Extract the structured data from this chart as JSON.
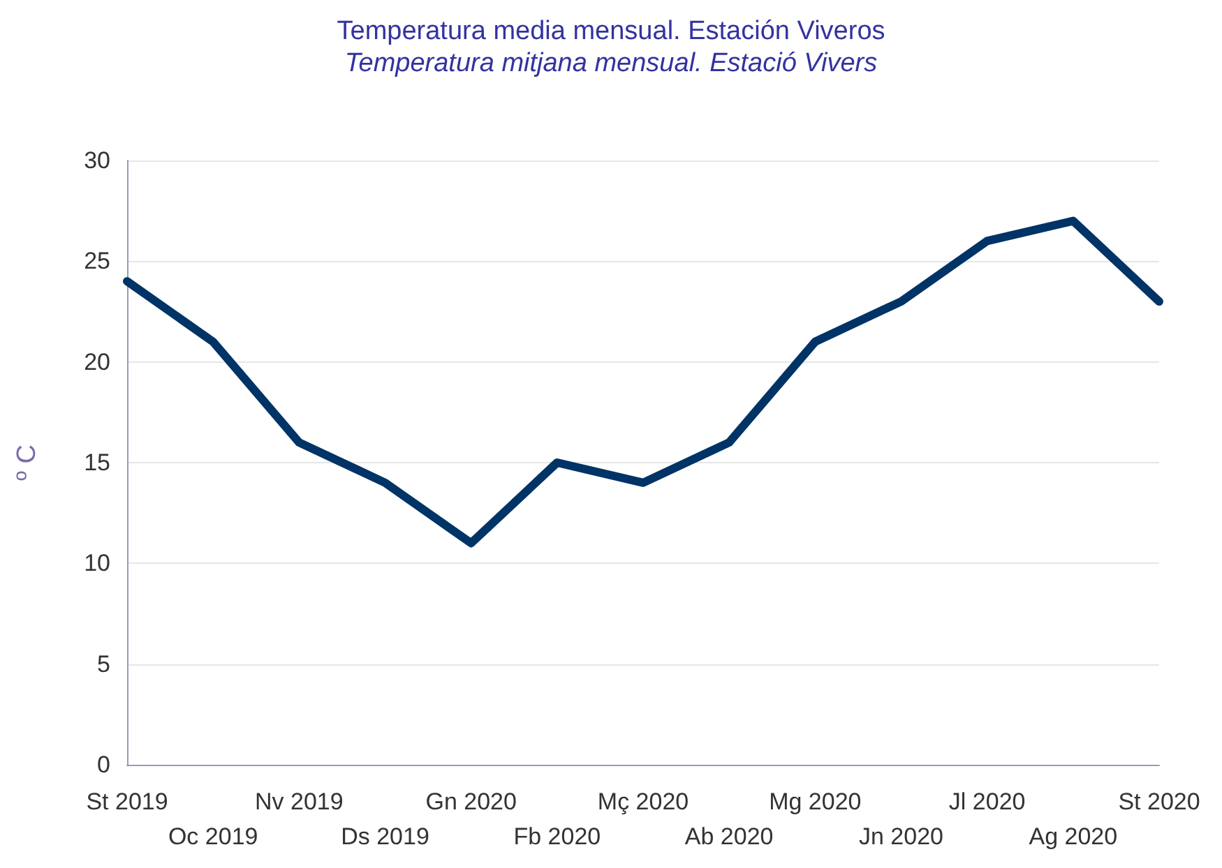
{
  "chart_data": {
    "type": "line",
    "title": "Temperatura media mensual. Estación Viveros",
    "subtitle": "Temperatura mitjana mensual. Estació Vivers",
    "ylabel": "º C",
    "categories": [
      "St 2019",
      "Oc 2019",
      "Nv 2019",
      "Ds 2019",
      "Gn 2020",
      "Fb 2020",
      "Mç 2020",
      "Ab 2020",
      "Mg 2020",
      "Jn 2020",
      "Jl 2020",
      "Ag 2020",
      "St 2020"
    ],
    "series": [
      {
        "color": "#003366",
        "values": [
          24,
          21,
          16,
          14,
          11,
          15,
          14,
          16,
          21,
          23,
          26,
          27,
          23
        ]
      }
    ],
    "ylim": [
      0,
      30
    ],
    "yticks": [
      0,
      5,
      10,
      15,
      20,
      25,
      30
    ],
    "grid": "y",
    "marker": "none",
    "line_style": "solid"
  }
}
